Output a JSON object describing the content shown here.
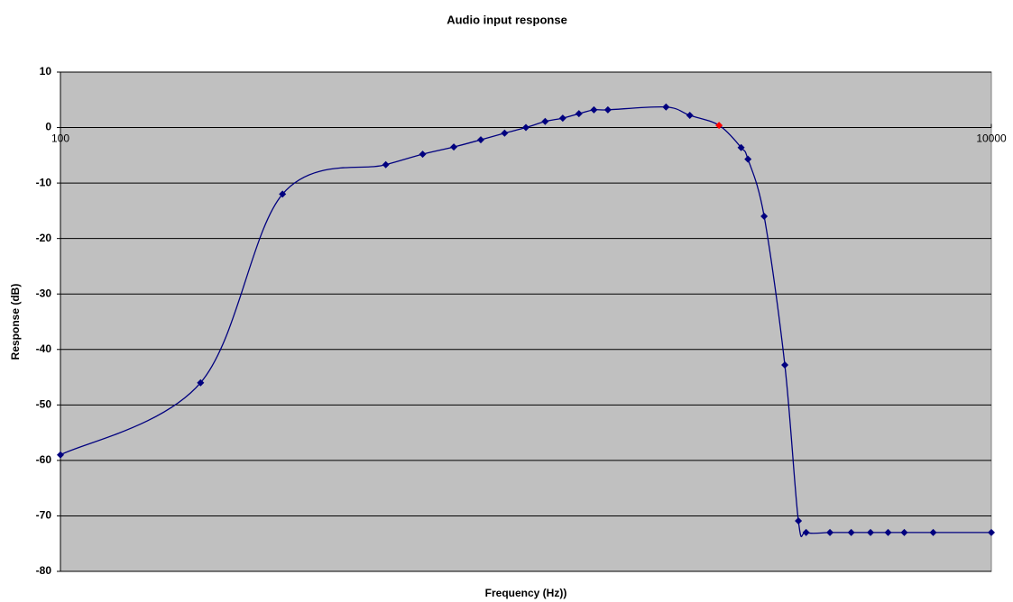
{
  "chart_data": {
    "type": "line",
    "title": "Audio input response",
    "x_label": "Frequency (Hz))",
    "y_label": "Response (dB)",
    "x": [
      100,
      200,
      300,
      500,
      600,
      700,
      800,
      900,
      1000,
      1100,
      1200,
      1300,
      1400,
      1500,
      2000,
      2250,
      2600,
      2900,
      3000,
      3250,
      3600,
      3850,
      4000,
      4500,
      5000,
      5500,
      6000,
      6500,
      7500,
      10000
    ],
    "series": [
      {
        "name": "Response",
        "color": "#00007f",
        "values": [
          -59,
          -46,
          -12,
          -6.7,
          -4.8,
          -3.5,
          -2.2,
          -1,
          0,
          1.1,
          1.7,
          2.5,
          3.2,
          3.2,
          3.7,
          2.2,
          0.4,
          -3.6,
          -5.7,
          -16,
          -42.8,
          -70.9,
          -73,
          -73,
          -73,
          -73,
          -73,
          -73,
          -73,
          -73
        ]
      }
    ],
    "highlight_index": 16,
    "highlight_color": "#ff0000",
    "xlog": true,
    "xlim": [
      100,
      10000
    ],
    "xticks": [
      100,
      10000
    ],
    "ylim": [
      -80,
      10
    ],
    "yticks": [
      -80,
      -70,
      -60,
      -50,
      -40,
      -30,
      -20,
      -10,
      0,
      10
    ],
    "grid": true,
    "plot_background": "#c0c0c0"
  }
}
